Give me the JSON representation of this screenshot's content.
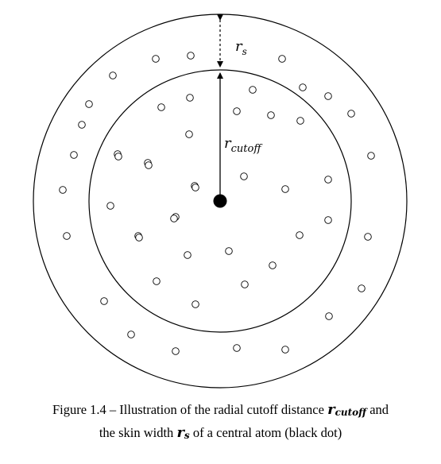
{
  "diagram": {
    "labels": {
      "skin_symbol": "r",
      "skin_subscript": "s",
      "cutoff_symbol": "r",
      "cutoff_subscript": "cutoff"
    },
    "colors": {
      "stroke": "#000000",
      "central_atom": "#000000",
      "background": "#ffffff"
    },
    "central_atom": "black dot",
    "neighbor_atom": "open circle"
  },
  "caption": {
    "line1_prefix": "Figure 1.4 – Illustration of the radial cutoff distance ",
    "cutoff_symbol": "r",
    "cutoff_subscript": "cutoff",
    "line1_suffix": " and",
    "line2_prefix": "the skin width ",
    "skin_symbol": "r",
    "skin_subscript": "s",
    "line2_suffix": " of a central atom (black dot)"
  }
}
